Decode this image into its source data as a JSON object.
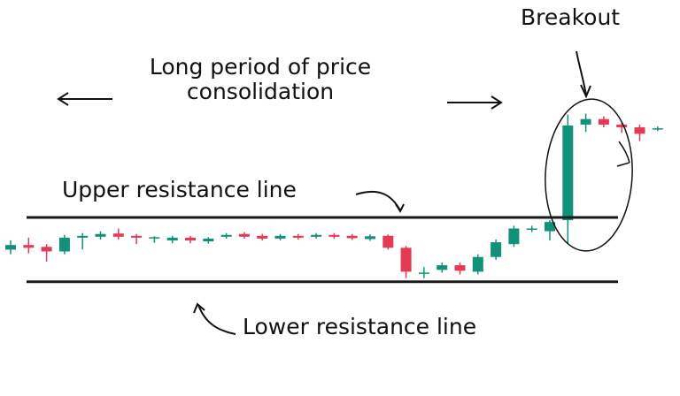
{
  "annotations": {
    "breakout": "Breakout",
    "consolidation_line1": "Long period of price",
    "consolidation_line2": "consolidation",
    "upper_line": "Upper resistance line",
    "lower_line": "Lower resistance line"
  },
  "colors": {
    "bullish": "#12917a",
    "bearish": "#e33b55",
    "line": "#1a1a1a"
  },
  "candles": [
    {
      "dir": "up",
      "open": 3.0,
      "close": 4.0,
      "high": 5.0,
      "low": 2.0
    },
    {
      "dir": "down",
      "open": 4.0,
      "close": 3.4,
      "high": 5.6,
      "low": 2.2
    },
    {
      "dir": "down",
      "open": 3.6,
      "close": 2.6,
      "high": 4.2,
      "low": 0.4
    },
    {
      "dir": "up",
      "open": 2.6,
      "close": 5.6,
      "high": 6.2,
      "low": 2.0
    },
    {
      "dir": "up",
      "open": 5.6,
      "close": 6.0,
      "high": 6.6,
      "low": 3.0
    },
    {
      "dir": "up",
      "open": 5.8,
      "close": 6.4,
      "high": 7.0,
      "low": 5.2
    },
    {
      "dir": "down",
      "open": 6.5,
      "close": 5.8,
      "high": 7.6,
      "low": 5.2
    },
    {
      "dir": "down",
      "open": 6.0,
      "close": 5.6,
      "high": 6.4,
      "low": 4.2
    },
    {
      "dir": "up",
      "open": 5.5,
      "close": 5.7,
      "high": 5.9,
      "low": 4.5
    },
    {
      "dir": "up",
      "open": 5.0,
      "close": 5.6,
      "high": 6.0,
      "low": 4.4
    },
    {
      "dir": "down",
      "open": 5.6,
      "close": 5.0,
      "high": 6.0,
      "low": 4.4
    },
    {
      "dir": "up",
      "open": 4.8,
      "close": 5.4,
      "high": 5.7,
      "low": 4.3
    },
    {
      "dir": "up",
      "open": 5.8,
      "close": 6.2,
      "high": 6.6,
      "low": 5.4
    },
    {
      "dir": "down",
      "open": 6.4,
      "close": 5.8,
      "high": 6.8,
      "low": 5.4
    },
    {
      "dir": "down",
      "open": 6.0,
      "close": 5.4,
      "high": 6.4,
      "low": 5.0
    },
    {
      "dir": "up",
      "open": 5.4,
      "close": 6.0,
      "high": 6.4,
      "low": 5.0
    },
    {
      "dir": "down",
      "open": 6.0,
      "close": 5.6,
      "high": 6.4,
      "low": 5.2
    },
    {
      "dir": "up",
      "open": 5.8,
      "close": 6.2,
      "high": 6.6,
      "low": 5.4
    },
    {
      "dir": "down",
      "open": 6.2,
      "close": 5.8,
      "high": 6.6,
      "low": 5.4
    },
    {
      "dir": "down",
      "open": 6.0,
      "close": 5.5,
      "high": 6.4,
      "low": 5.1
    },
    {
      "dir": "up",
      "open": 5.3,
      "close": 5.9,
      "high": 6.3,
      "low": 4.9
    },
    {
      "dir": "down",
      "open": 6.0,
      "close": 3.4,
      "high": 6.3,
      "low": 3.0
    },
    {
      "dir": "down",
      "open": 3.4,
      "close": -1.8,
      "high": 3.8,
      "low": -3.2
    },
    {
      "dir": "up",
      "open": -2.0,
      "close": -2.0,
      "high": -0.8,
      "low": -3.2
    },
    {
      "dir": "up",
      "open": -1.4,
      "close": -0.4,
      "high": 0.2,
      "low": -2.0
    },
    {
      "dir": "down",
      "open": -0.4,
      "close": -1.6,
      "high": 0.2,
      "low": -2.4
    },
    {
      "dir": "up",
      "open": -1.8,
      "close": 1.4,
      "high": 2.0,
      "low": -2.4
    },
    {
      "dir": "up",
      "open": 1.4,
      "close": 4.6,
      "high": 5.2,
      "low": 0.8
    },
    {
      "dir": "up",
      "open": 4.2,
      "close": 7.6,
      "high": 8.2,
      "low": 3.6
    },
    {
      "dir": "up",
      "open": 7.4,
      "close": 7.6,
      "high": 8.2,
      "low": 6.8
    },
    {
      "dir": "up",
      "open": 7.0,
      "close": 9.0,
      "high": 9.4,
      "low": 5.0
    },
    {
      "dir": "up",
      "open": 9.4,
      "close": 30.0,
      "high": 32.4,
      "low": 4.4
    },
    {
      "dir": "up",
      "open": 30.2,
      "close": 31.4,
      "high": 32.6,
      "low": 28.6
    },
    {
      "dir": "down",
      "open": 31.4,
      "close": 30.2,
      "high": 32.0,
      "low": 29.6
    },
    {
      "dir": "down",
      "open": 30.2,
      "close": 29.6,
      "high": 30.8,
      "low": 28.4
    },
    {
      "dir": "down",
      "open": 29.6,
      "close": 28.2,
      "high": 30.2,
      "low": 26.6
    },
    {
      "dir": "up",
      "open": 29.2,
      "close": 29.4,
      "high": 29.8,
      "low": 28.8
    }
  ],
  "levels": {
    "upper": 10,
    "lower": -4
  }
}
